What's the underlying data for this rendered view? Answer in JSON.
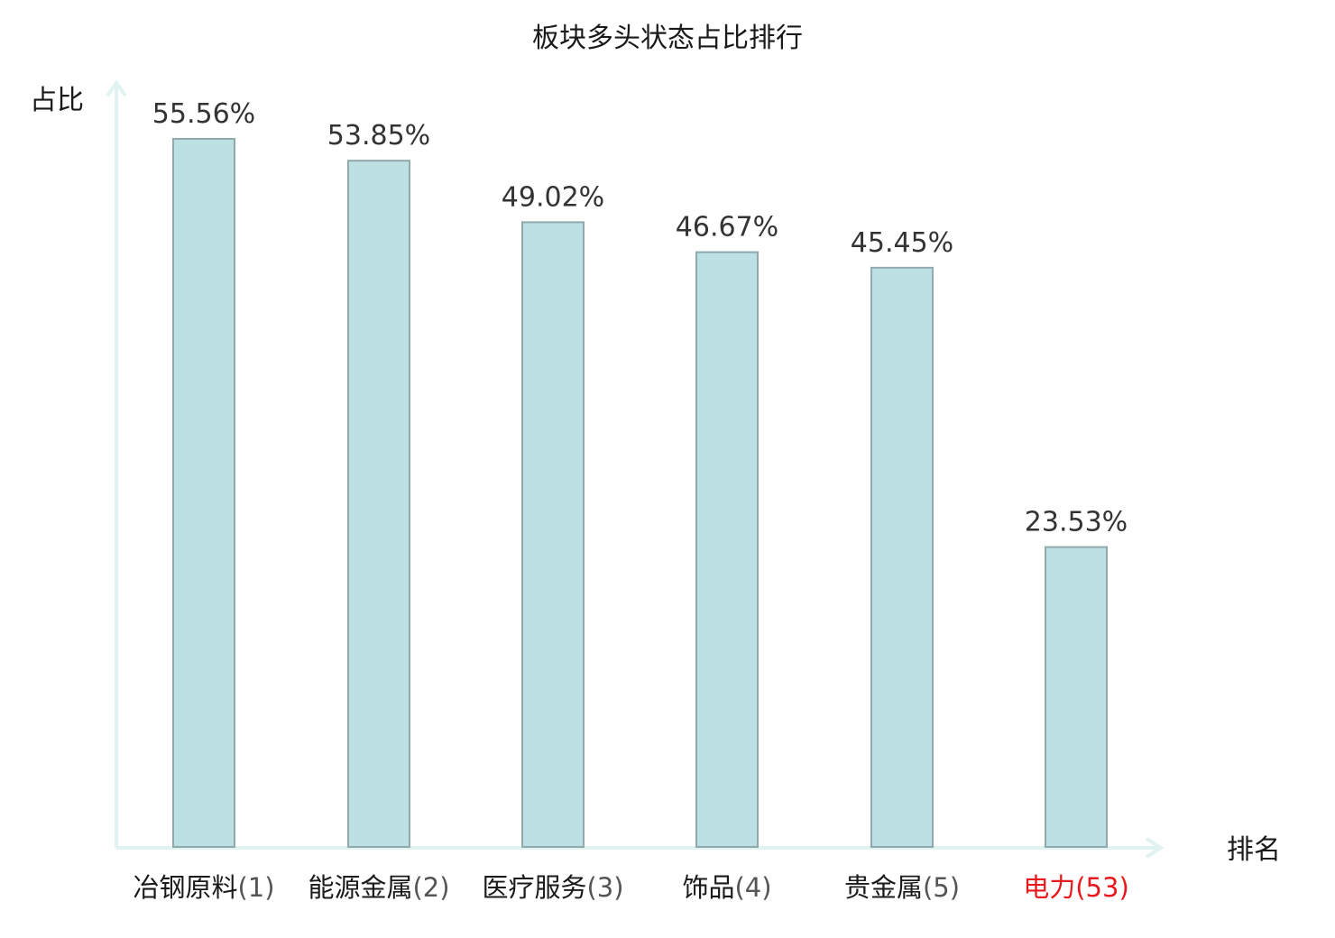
{
  "colors": {
    "bar_fill": "#bde0e2",
    "bar_stroke": "#8fa9ad",
    "axis": "#e0f3f0",
    "text": "#1a1a1a",
    "value_text": "#333333",
    "highlight": "#e8191c"
  },
  "chart_data": {
    "type": "bar",
    "title": "板块多头状态占比排行",
    "xlabel": "排名",
    "ylabel": "占比",
    "categories": [
      "冶钢原料",
      "能源金属",
      "医疗服务",
      "饰品",
      "贵金属",
      "电力"
    ],
    "ranks": [
      "(1)",
      "(2)",
      "(3)",
      "(4)",
      "(5)",
      "(53)"
    ],
    "values": [
      55.56,
      53.85,
      49.02,
      46.67,
      45.45,
      23.53
    ],
    "value_labels": [
      "55.56%",
      "53.85%",
      "49.02%",
      "46.67%",
      "45.45%",
      "23.53%"
    ],
    "highlight_index": 5,
    "ylim": [
      0,
      60
    ],
    "grid": false,
    "legend": "none"
  }
}
